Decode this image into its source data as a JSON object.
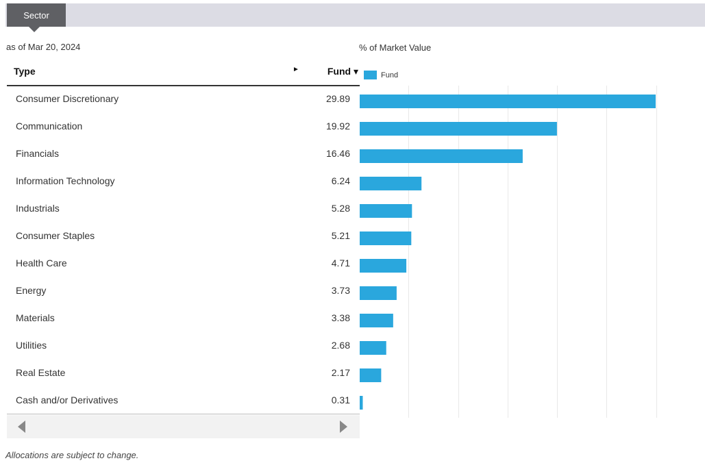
{
  "tab": {
    "label": "Sector"
  },
  "as_of": "as of Mar 20, 2024",
  "table": {
    "col_type": "Type",
    "col_arrow": "►",
    "col_fund": "Fund ▾"
  },
  "note": "Allocations are subject to change.",
  "colors": {
    "bar": "#2aa7dd",
    "tab": "#5f6064",
    "topbar": "#dcdce4"
  },
  "chart_data": {
    "type": "bar",
    "orientation": "horizontal",
    "title": "% of Market Value",
    "xlabel": "",
    "ylabel": "",
    "xlim": [
      0,
      35
    ],
    "grid": true,
    "legend": "top-left",
    "categories": [
      "Consumer Discretionary",
      "Communication",
      "Financials",
      "Information Technology",
      "Industrials",
      "Consumer Staples",
      "Health Care",
      "Energy",
      "Materials",
      "Utilities",
      "Real Estate",
      "Cash and/or Derivatives"
    ],
    "series": [
      {
        "name": "Fund",
        "values": [
          29.89,
          19.92,
          16.46,
          6.24,
          5.28,
          5.21,
          4.71,
          3.73,
          3.38,
          2.68,
          2.17,
          0.31
        ],
        "labels": [
          "29.89",
          "19.92",
          "16.46",
          "6.24",
          "5.28",
          "5.21",
          "4.71",
          "3.73",
          "3.38",
          "2.68",
          "2.17",
          "0.31"
        ]
      }
    ]
  }
}
